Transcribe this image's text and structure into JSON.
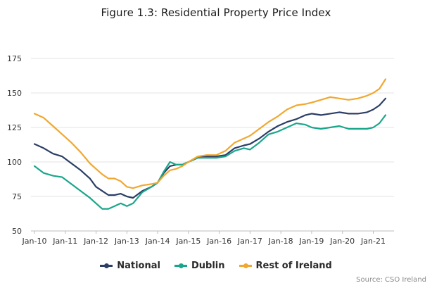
{
  "title": "Figure 1.3: Residential Property Price Index",
  "source": "Source: CSO Ireland",
  "colors": {
    "National": "#2c3e66",
    "Dublin": "#1aa68a",
    "Rest of Ireland": "#f0a830",
    "grid": "#e3e3e3",
    "axis": "#555555"
  },
  "chart_data": {
    "type": "line",
    "title": "Figure 1.3: Residential Property Price Index",
    "xlabel": "",
    "ylabel": "",
    "x_ticks": [
      "Jan-10",
      "Jan-11",
      "Jan-12",
      "Jan-13",
      "Jan-14",
      "Jan-15",
      "Jan-16",
      "Jan-17",
      "Jan-18",
      "Jan-19",
      "Jan-20",
      "Jan-21"
    ],
    "y_ticks": [
      50,
      75,
      100,
      125,
      150,
      175
    ],
    "xlim": [
      2010.0,
      2021.4
    ],
    "ylim": [
      50,
      175
    ],
    "grid": "horizontal",
    "legend_position": "bottom",
    "series": [
      {
        "name": "National",
        "x": [
          2010.0,
          2010.3,
          2010.6,
          2010.9,
          2011.2,
          2011.5,
          2011.8,
          2012.0,
          2012.2,
          2012.4,
          2012.6,
          2012.8,
          2013.0,
          2013.2,
          2013.5,
          2013.8,
          2014.0,
          2014.2,
          2014.4,
          2014.6,
          2014.8,
          2015.0,
          2015.3,
          2015.6,
          2015.9,
          2016.2,
          2016.5,
          2016.8,
          2017.0,
          2017.3,
          2017.6,
          2017.9,
          2018.2,
          2018.5,
          2018.8,
          2019.0,
          2019.3,
          2019.6,
          2019.9,
          2020.2,
          2020.5,
          2020.8,
          2021.0,
          2021.2,
          2021.4
        ],
        "y": [
          113,
          110,
          106,
          104,
          99,
          94,
          88,
          82,
          79,
          76,
          76,
          77,
          75,
          74,
          79,
          82,
          85,
          92,
          97,
          98,
          98,
          100,
          103,
          104,
          104,
          105,
          110,
          112,
          113,
          117,
          122,
          126,
          129,
          131,
          134,
          135,
          134,
          135,
          136,
          135,
          135,
          136,
          138,
          141,
          146
        ]
      },
      {
        "name": "Dublin",
        "x": [
          2010.0,
          2010.3,
          2010.6,
          2010.9,
          2011.2,
          2011.5,
          2011.8,
          2012.0,
          2012.2,
          2012.4,
          2012.6,
          2012.8,
          2013.0,
          2013.2,
          2013.5,
          2013.8,
          2014.0,
          2014.2,
          2014.4,
          2014.6,
          2014.8,
          2015.0,
          2015.3,
          2015.6,
          2015.9,
          2016.2,
          2016.5,
          2016.8,
          2017.0,
          2017.3,
          2017.6,
          2017.9,
          2018.2,
          2018.5,
          2018.8,
          2019.0,
          2019.3,
          2019.6,
          2019.9,
          2020.2,
          2020.5,
          2020.8,
          2021.0,
          2021.2,
          2021.4
        ],
        "y": [
          97,
          92,
          90,
          89,
          84,
          79,
          74,
          70,
          66,
          66,
          68,
          70,
          68,
          70,
          78,
          82,
          85,
          93,
          100,
          98,
          98,
          100,
          103,
          103,
          103,
          104,
          108,
          110,
          109,
          114,
          120,
          122,
          125,
          128,
          127,
          125,
          124,
          125,
          126,
          124,
          124,
          124,
          125,
          128,
          134
        ]
      },
      {
        "name": "Rest of Ireland",
        "x": [
          2010.0,
          2010.3,
          2010.6,
          2010.9,
          2011.2,
          2011.5,
          2011.8,
          2012.0,
          2012.2,
          2012.4,
          2012.6,
          2012.8,
          2013.0,
          2013.2,
          2013.5,
          2013.8,
          2014.0,
          2014.2,
          2014.4,
          2014.6,
          2014.8,
          2015.0,
          2015.3,
          2015.6,
          2015.9,
          2016.2,
          2016.5,
          2016.8,
          2017.0,
          2017.3,
          2017.6,
          2017.9,
          2018.2,
          2018.5,
          2018.8,
          2019.0,
          2019.3,
          2019.6,
          2019.9,
          2020.2,
          2020.5,
          2020.8,
          2021.0,
          2021.2,
          2021.4
        ],
        "y": [
          135,
          132,
          126,
          120,
          114,
          107,
          99,
          95,
          91,
          88,
          88,
          86,
          82,
          81,
          83,
          84,
          85,
          90,
          94,
          95,
          97,
          100,
          104,
          105,
          105,
          108,
          114,
          117,
          119,
          124,
          129,
          133,
          138,
          141,
          142,
          143,
          145,
          147,
          146,
          145,
          146,
          148,
          150,
          153,
          160
        ]
      }
    ]
  }
}
